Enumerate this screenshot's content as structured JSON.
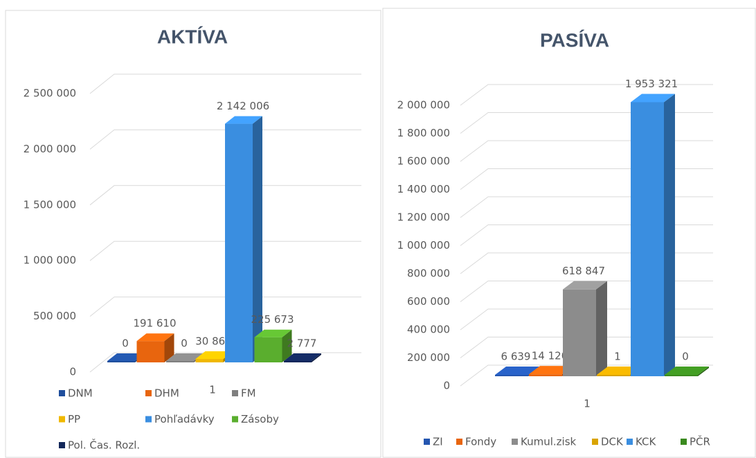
{
  "chart_data": [
    {
      "type": "bar3d",
      "title": "AKTÍVA",
      "categories": [
        "1"
      ],
      "series": [
        {
          "name": "DNM",
          "color": "#1f4e9c",
          "values": [
            0
          ]
        },
        {
          "name": "DHM",
          "color": "#e8650e",
          "values": [
            191610
          ],
          "value_labels": [
            "191 610"
          ]
        },
        {
          "name": "FM",
          "color": "#7f7f7f",
          "values": [
            0
          ]
        },
        {
          "name": "PP",
          "color": "#f0b800",
          "values": [
            30862
          ],
          "value_labels": [
            "30 862"
          ]
        },
        {
          "name": "Pohľadávky",
          "color": "#3a8ee0",
          "values": [
            2142006
          ],
          "value_labels": [
            "2 142 006"
          ]
        },
        {
          "name": "Zásoby",
          "color": "#5aae2e",
          "values": [
            225673
          ],
          "value_labels": [
            "225 673"
          ]
        },
        {
          "name": "Pol. Čas. Rozl.",
          "color": "#12275a",
          "values": [
            2777
          ],
          "value_labels": [
            "2 777"
          ]
        }
      ],
      "ylim": [
        0,
        2500000
      ],
      "yticks": [
        0,
        {
          "value": 500000,
          "label": "500 000"
        },
        {
          "value": 1000000,
          "label": "1 000 000"
        },
        {
          "value": 1500000,
          "label": "1 500 000"
        },
        {
          "value": 2000000,
          "label": "2 000 000"
        },
        {
          "value": 2500000,
          "label": "2 500 000"
        }
      ],
      "grid": true,
      "legend": "bottom"
    },
    {
      "type": "bar3d",
      "title": "PASÍVA",
      "categories": [
        "1"
      ],
      "series": [
        {
          "name": "ZI",
          "color": "#2456b0",
          "values": [
            6639
          ],
          "value_labels": [
            "6 639"
          ]
        },
        {
          "name": "Fondy",
          "color": "#e8650e",
          "values": [
            14120
          ],
          "value_labels": [
            "14 120"
          ]
        },
        {
          "name": "Kumul.zisk",
          "color": "#8c8c8c",
          "values": [
            618847
          ],
          "value_labels": [
            "618 847"
          ]
        },
        {
          "name": "DCK",
          "color": "#d9a300",
          "values": [
            1
          ]
        },
        {
          "name": "KCK",
          "color": "#3a8ee0",
          "values": [
            1953321
          ],
          "value_labels": [
            "1 953 321"
          ]
        },
        {
          "name": "PČR",
          "color": "#3a8a1e",
          "values": [
            0
          ]
        }
      ],
      "ylim": [
        0,
        2000000
      ],
      "yticks": [
        0,
        {
          "value": 200000,
          "label": "200 000"
        },
        {
          "value": 400000,
          "label": "400 000"
        },
        {
          "value": 600000,
          "label": "600 000"
        },
        {
          "value": 800000,
          "label": "800 000"
        },
        {
          "value": 1000000,
          "label": "1 000 000"
        },
        {
          "value": 1200000,
          "label": "1 200 000"
        },
        {
          "value": 1400000,
          "label": "1 400 000"
        },
        {
          "value": 1600000,
          "label": "1 600 000"
        },
        {
          "value": 1800000,
          "label": "1 800 000"
        },
        {
          "value": 2000000,
          "label": "2 000 000"
        }
      ],
      "grid": true,
      "legend": "bottom"
    }
  ]
}
